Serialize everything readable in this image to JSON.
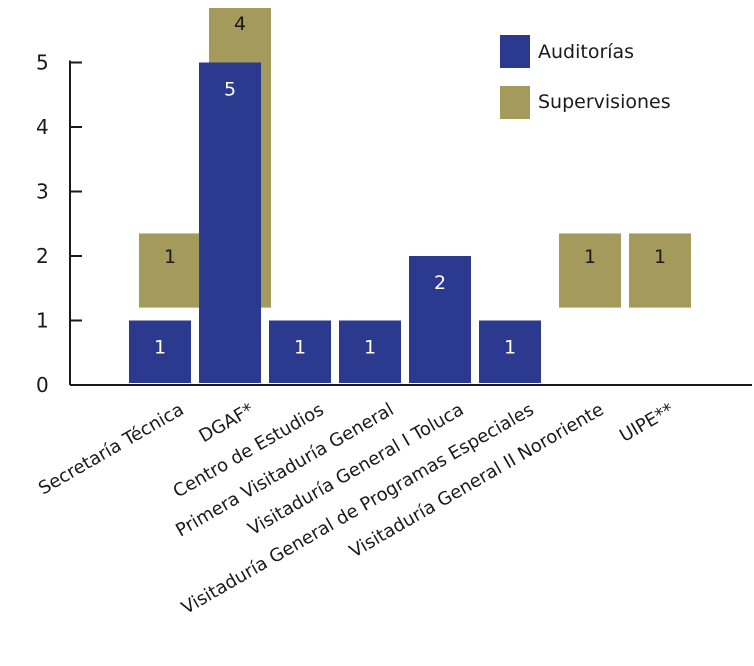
{
  "chart_data": {
    "type": "bar",
    "categories": [
      "Secretaría Técnica",
      "DGAF*",
      "Centro de Estudios",
      "Primera Visitaduría General",
      "Visitaduría General I Toluca",
      "Visitaduría General de Programas Especiales",
      "Visitaduría General II Nororiente",
      "UIPE**"
    ],
    "series": [
      {
        "name": "Auditorías",
        "color": "#2b3a8f",
        "label_color": "#ffffff",
        "values": [
          1,
          5,
          1,
          1,
          2,
          1,
          null,
          null
        ]
      },
      {
        "name": "Supervisiones",
        "color": "#a39a5b",
        "label_color": "#1a1a1a",
        "values": [
          1,
          4,
          null,
          null,
          null,
          null,
          1,
          1
        ]
      }
    ],
    "ylim": [
      0,
      5
    ],
    "yticks": [
      0,
      1,
      2,
      3,
      4,
      5
    ],
    "title": "",
    "xlabel": "",
    "ylabel": "",
    "grid": false,
    "legend_position": "top-right"
  }
}
